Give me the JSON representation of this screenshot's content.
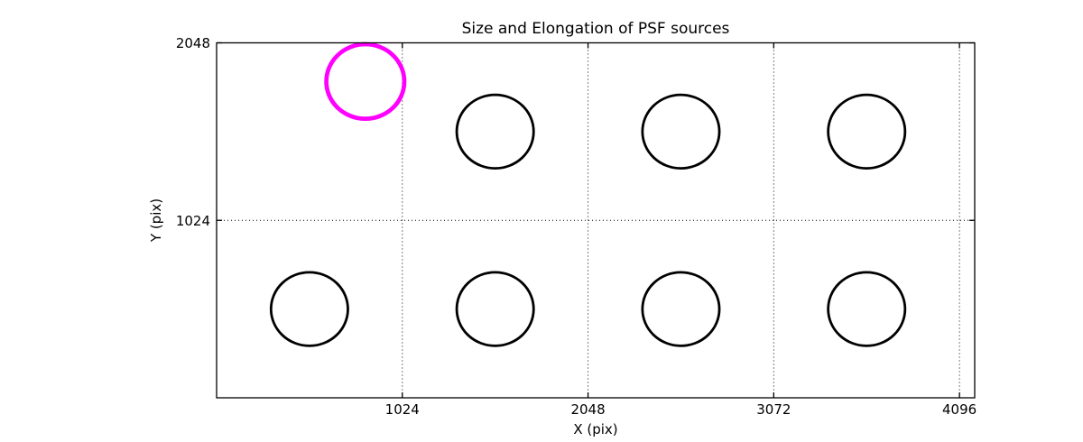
{
  "figure": {
    "background": "#ffffff"
  },
  "chart_data": {
    "type": "scatter",
    "title": "Size and Elongation of PSF sources",
    "xlabel": "X (pix)",
    "ylabel": "Y (pix)",
    "xlim": [
      0,
      4180
    ],
    "ylim": [
      0,
      2048
    ],
    "xticks": [
      1024,
      2048,
      3072,
      4096
    ],
    "yticks": [
      1024,
      2048
    ],
    "grid": "dotted",
    "legend": "none",
    "series_style": {
      "normal": {
        "color": "#000000",
        "stroke_width": 2.8
      },
      "flagged": {
        "color": "#ff00ff",
        "stroke_width": 4.7
      }
    },
    "points": [
      {
        "x": 820,
        "y": 1825,
        "r": 215,
        "series": "flagged"
      },
      {
        "x": 1536,
        "y": 1536,
        "r": 212,
        "series": "normal"
      },
      {
        "x": 2560,
        "y": 1536,
        "r": 212,
        "series": "normal"
      },
      {
        "x": 3584,
        "y": 1536,
        "r": 212,
        "series": "normal"
      },
      {
        "x": 512,
        "y": 512,
        "r": 212,
        "series": "normal"
      },
      {
        "x": 1536,
        "y": 512,
        "r": 212,
        "series": "normal"
      },
      {
        "x": 2560,
        "y": 512,
        "r": 212,
        "series": "normal"
      },
      {
        "x": 3584,
        "y": 512,
        "r": 212,
        "series": "normal"
      }
    ]
  }
}
